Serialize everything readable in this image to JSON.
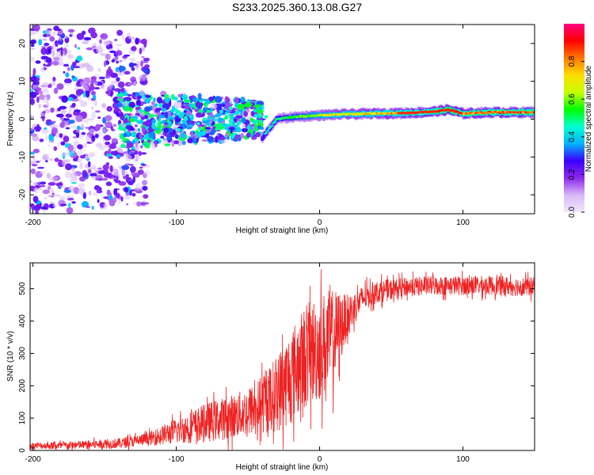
{
  "figure_title": "S233.2025.360.13.08.G27",
  "chart_data": [
    {
      "type": "heatmap",
      "title": "S233.2025.360.13.08.G27",
      "xlabel": "Height of straight line (km)",
      "ylabel": "Frequency (Hz)",
      "xlim": [
        -202,
        150
      ],
      "ylim": [
        -25,
        25
      ],
      "x_ticks": [
        -200,
        -100,
        0,
        100
      ],
      "x_tick_labels": [
        "-200",
        "-100",
        "0",
        "100"
      ],
      "y_ticks": [
        -20,
        -10,
        0,
        10,
        20
      ],
      "y_tick_labels": [
        "-20",
        "-10",
        "0",
        "10",
        "20"
      ],
      "colorbar": {
        "label": "Normalized spectral amplitude",
        "range": [
          0,
          1
        ],
        "ticks": [
          0.0,
          0.2,
          0.4,
          0.6,
          0.8
        ],
        "tick_labels": [
          "0.0",
          "0.2",
          "0.4",
          "0.6",
          "0.8"
        ],
        "colors": [
          "#f0e8fa",
          "#d8b8f8",
          "#8c28ec",
          "#3c00ff",
          "#00b4ff",
          "#00ffd0",
          "#00ff00",
          "#c8ff00",
          "#ffdc00",
          "#ff7800",
          "#ff0000",
          "#ff0080"
        ]
      },
      "ridge": {
        "description_x": [
          -40,
          -30,
          -20,
          -10,
          0,
          10,
          20,
          40,
          60,
          80,
          90,
          100,
          120,
          150
        ],
        "frequency_hz": [
          -5.0,
          0.0,
          0.5,
          0.8,
          1.0,
          1.2,
          1.3,
          1.5,
          1.6,
          2.0,
          2.5,
          1.5,
          1.8,
          1.8
        ],
        "amplitude": [
          0.45,
          0.5,
          0.55,
          0.6,
          0.65,
          0.7,
          0.7,
          0.75,
          0.8,
          0.85,
          0.9,
          0.85,
          0.85,
          0.85
        ]
      },
      "noise_regions": [
        {
          "x_from": -202,
          "x_to": -120,
          "freq_spread_hz": 25,
          "amplitude": 0.15
        },
        {
          "x_from": -140,
          "x_to": -40,
          "freq_spread_hz": 8,
          "amplitude": 0.3
        }
      ]
    },
    {
      "type": "line",
      "xlabel": "Height of straight line (km)",
      "ylabel": "SNR (10 * v/v)",
      "xlim": [
        -202,
        150
      ],
      "ylim": [
        0,
        580
      ],
      "x_ticks": [
        -200,
        -100,
        0,
        100
      ],
      "x_tick_labels": [
        "-200",
        "-100",
        "0",
        "100"
      ],
      "y_ticks": [
        0,
        100,
        200,
        300,
        400,
        500
      ],
      "y_tick_labels": [
        "0",
        "100",
        "200",
        "300",
        "400",
        "500"
      ],
      "series": [
        {
          "name": "SNR",
          "color": "#ee2222",
          "x": [
            -202,
            -180,
            -160,
            -140,
            -120,
            -100,
            -80,
            -60,
            -50,
            -40,
            -30,
            -20,
            -10,
            0,
            10,
            20,
            30,
            40,
            60,
            80,
            100,
            120,
            150
          ],
          "values": [
            15,
            15,
            18,
            22,
            35,
            60,
            85,
            105,
            120,
            140,
            175,
            230,
            290,
            320,
            350,
            420,
            470,
            490,
            505,
            510,
            510,
            510,
            505
          ],
          "noise": [
            10,
            12,
            14,
            16,
            20,
            40,
            60,
            70,
            75,
            90,
            120,
            150,
            160,
            170,
            150,
            60,
            40,
            35,
            30,
            30,
            30,
            30,
            30
          ]
        }
      ]
    }
  ]
}
